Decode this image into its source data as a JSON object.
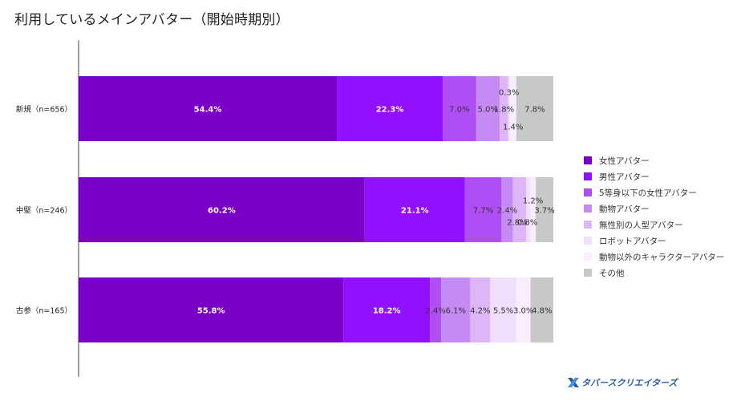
{
  "title": "利用しているメインアバター（開始時期別）",
  "logo": {
    "text": "タバースクリエイターズ"
  },
  "chart_data": {
    "type": "bar",
    "orientation": "horizontal",
    "stacked": true,
    "normalized": true,
    "title": "利用しているメインアバター（開始時期別）",
    "categories": [
      "新規（n=656）",
      "中堅（n=246）",
      "古参（n=165）"
    ],
    "series": [
      {
        "name": "女性アバター",
        "color": "#7a00c7",
        "values": [
          54.4,
          60.2,
          55.8
        ]
      },
      {
        "name": "男性アバター",
        "color": "#9110ff",
        "values": [
          22.3,
          21.1,
          18.2
        ]
      },
      {
        "name": "5等身以下の女性アバター",
        "color": "#b04ef5",
        "values": [
          7.0,
          7.7,
          2.4
        ]
      },
      {
        "name": "動物アバター",
        "color": "#c68af4",
        "values": [
          5.0,
          2.4,
          6.1
        ]
      },
      {
        "name": "無性別の人型アバター",
        "color": "#ddb6f8",
        "values": [
          1.8,
          2.8,
          4.2
        ]
      },
      {
        "name": "ロボットアバター",
        "color": "#f1defc",
        "values": [
          0.3,
          0.8,
          5.5
        ]
      },
      {
        "name": "動物以外のキャラクターアバター",
        "color": "#f8eefd",
        "values": [
          1.4,
          1.2,
          3.0
        ]
      },
      {
        "name": "その他",
        "color": "#c8c8c8",
        "values": [
          7.8,
          3.7,
          4.8
        ]
      }
    ],
    "data_labels": [
      [
        "54.4%",
        "22.3%",
        "7.0%",
        "5.0%",
        "1.8%",
        "0.3%",
        "1.4%",
        "7.8%"
      ],
      [
        "60.2%",
        "21.1%",
        "7.7%",
        "2.4%",
        "2.8%",
        "0.8%",
        "1.2%",
        "3.7%"
      ],
      [
        "55.8%",
        "18.2%",
        "2.4%",
        "6.1%",
        "4.2%",
        "5.5%",
        "3.0%",
        "4.8%"
      ]
    ],
    "legend_position": "right",
    "grid": false
  }
}
